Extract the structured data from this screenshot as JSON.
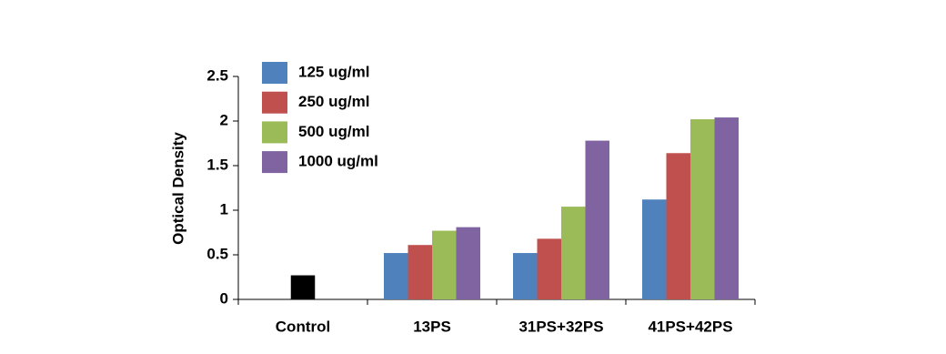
{
  "chart_data": {
    "type": "bar",
    "y_label": "Optical Density",
    "categories": [
      "Control",
      "13PS",
      "31PS+32PS",
      "41PS+42PS"
    ],
    "series": [
      {
        "name": "125 ug/ml",
        "color": "#4f81bd",
        "values": [
          null,
          0.52,
          0.52,
          1.12
        ]
      },
      {
        "name": "250 ug/ml",
        "color": "#c0504d",
        "values": [
          null,
          0.61,
          0.68,
          1.64
        ]
      },
      {
        "name": "500 ug/ml",
        "color": "#9bbb59",
        "values": [
          null,
          0.77,
          1.04,
          2.02
        ]
      },
      {
        "name": "1000 ug/ml",
        "color": "#8064a2",
        "values": [
          null,
          0.81,
          1.78,
          2.04
        ]
      },
      {
        "color": "#000000",
        "values": [
          0.27,
          null,
          null,
          null
        ]
      }
    ],
    "ylim": [
      0,
      2.5
    ],
    "yticks": [
      0,
      0.5,
      1,
      1.5,
      2,
      2.5
    ],
    "grid": false
  }
}
